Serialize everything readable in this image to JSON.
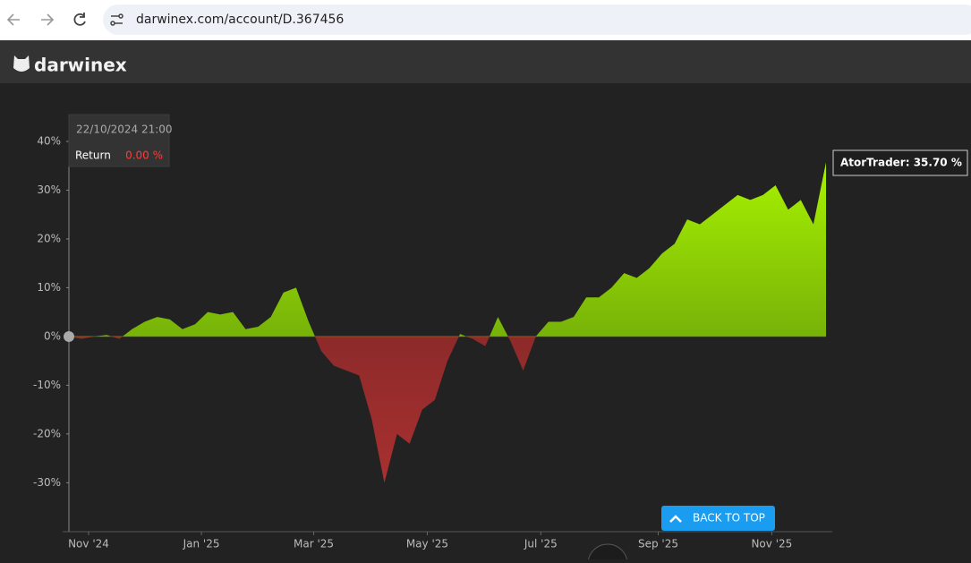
{
  "browser": {
    "url": "darwinex.com/account/D.367456"
  },
  "header": {
    "logo": "darwinex"
  },
  "chart_data": {
    "type": "area",
    "series": [
      {
        "name": "AtorTrader",
        "color": "#9be600",
        "negative_color": "#8f2a2a",
        "values": [
          0,
          -0.5,
          0,
          0.3,
          -0.5,
          1.5,
          3,
          4,
          3.5,
          1.5,
          2.5,
          5,
          4.5,
          5,
          1.5,
          2,
          4,
          9,
          10,
          3,
          -3,
          -6,
          -7,
          -8,
          -17,
          -30,
          -20,
          -22,
          -15,
          -13,
          -5,
          0.5,
          -0.5,
          -2,
          4,
          -1,
          -7,
          0,
          3,
          3,
          4,
          8,
          8,
          10,
          13,
          12,
          14,
          17,
          19,
          24,
          23,
          25,
          27,
          29,
          28,
          29,
          31,
          26,
          28,
          23,
          35.7
        ]
      }
    ],
    "end_label": "AtorTrader: 35.70 %",
    "xlim": [
      0,
      60
    ],
    "xticks": [
      {
        "value": 1.56,
        "label": "Nov '24"
      },
      {
        "value": 10.5,
        "label": "Jan '25"
      },
      {
        "value": 19.4,
        "label": "Mar '25"
      },
      {
        "value": 28.4,
        "label": "May '25"
      },
      {
        "value": 37.4,
        "label": "Jul '25"
      },
      {
        "value": 46.7,
        "label": "Sep '25"
      },
      {
        "value": 55.7,
        "label": "Nov '25"
      }
    ],
    "ylim": [
      -39.3,
      43.3
    ],
    "yticks": [
      {
        "value": 40,
        "label": "40%"
      },
      {
        "value": 30,
        "label": "30%"
      },
      {
        "value": 20,
        "label": "20%"
      },
      {
        "value": 10,
        "label": "10%"
      },
      {
        "value": 0,
        "label": "0%"
      },
      {
        "value": -10,
        "label": "-10%"
      },
      {
        "value": -20,
        "label": "-20%"
      },
      {
        "value": -30,
        "label": "-30%"
      }
    ],
    "tooltip": {
      "date": "22/10/2024 21:00",
      "label": "Return",
      "value": "0.00 %"
    },
    "back_to_top": "BACK TO TOP"
  }
}
